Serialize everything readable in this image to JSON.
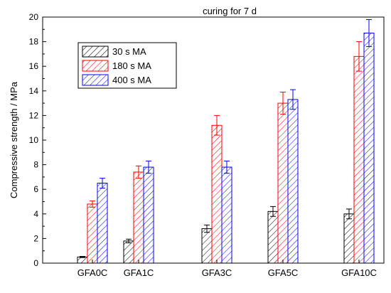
{
  "chart_data": {
    "type": "bar",
    "title": "curing for 7 d",
    "xlabel": "",
    "ylabel": "Compressive strength / MPa",
    "ylim": [
      0,
      20
    ],
    "yticks": [
      0,
      2,
      4,
      6,
      8,
      10,
      12,
      14,
      16,
      18,
      20
    ],
    "categories": [
      "GFA0C",
      "GFA1C",
      "GFA3C",
      "GFA5C",
      "GFA10C"
    ],
    "category_positions": [
      0,
      1,
      3,
      5,
      10
    ],
    "grid": false,
    "legend_position": "top-left",
    "series": [
      {
        "name": "30 s MA",
        "color": "#000000",
        "pattern": "hatch",
        "values": [
          0.5,
          1.8,
          2.8,
          4.2,
          4.0
        ],
        "errors": [
          0.05,
          0.15,
          0.3,
          0.4,
          0.4
        ]
      },
      {
        "name": "180 s MA",
        "color": "#ff0000",
        "pattern": "hatch",
        "values": [
          4.8,
          7.4,
          11.2,
          13.0,
          16.8
        ],
        "errors": [
          0.25,
          0.5,
          0.8,
          0.9,
          1.2
        ]
      },
      {
        "name": "400 s MA",
        "color": "#0000ff",
        "pattern": "hatch",
        "values": [
          6.5,
          7.8,
          7.8,
          13.3,
          18.7
        ],
        "errors": [
          0.4,
          0.5,
          0.5,
          0.8,
          1.1
        ]
      }
    ]
  }
}
